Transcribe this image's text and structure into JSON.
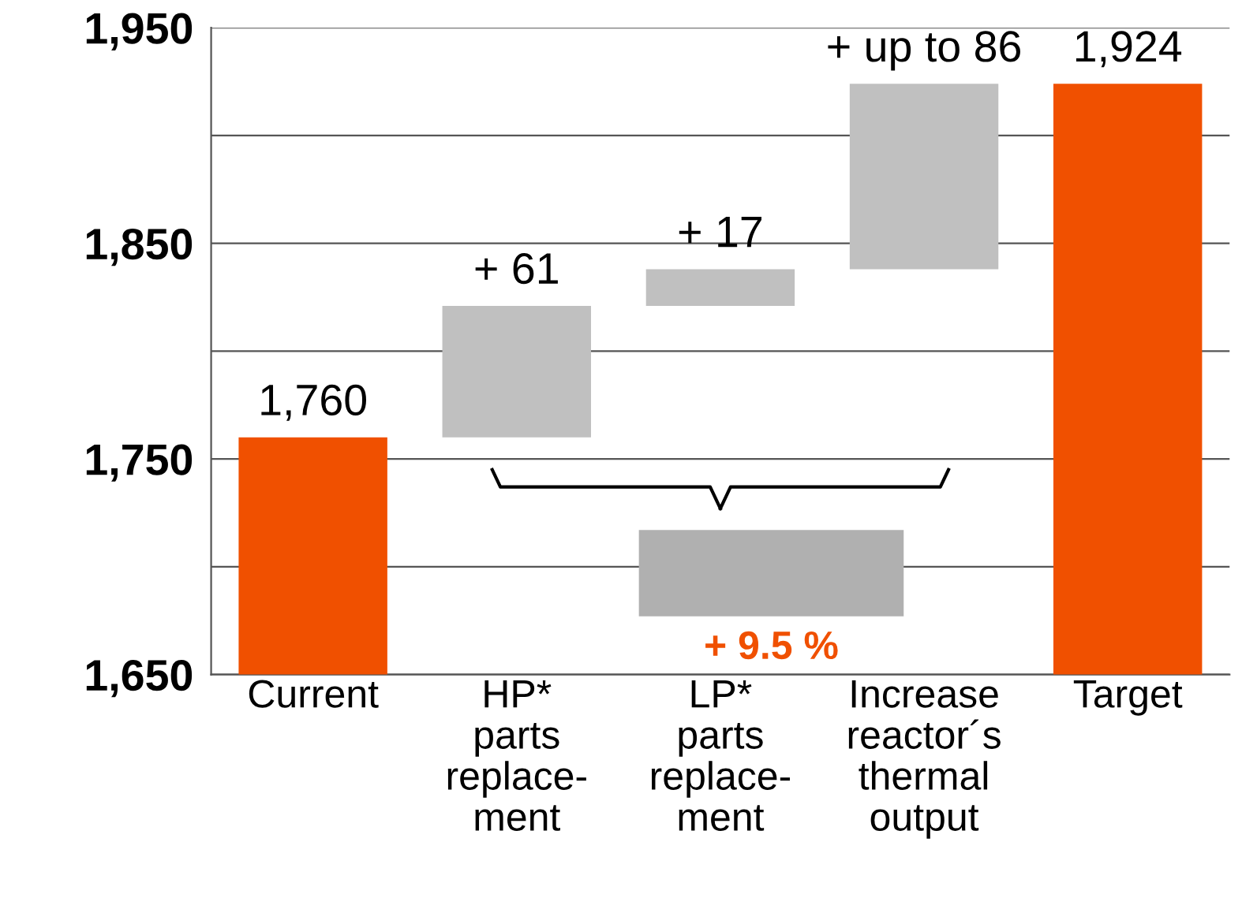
{
  "chart_data": {
    "type": "bar",
    "categories": [
      "Current",
      "HP*\nparts\nreplace-\nment",
      "LP*\nparts\nreplace-\nment",
      "Increase\nreactor´s\nthermal\noutput",
      "Target"
    ],
    "values": [
      1760,
      61,
      17,
      86,
      1924
    ],
    "base": [
      null,
      1760,
      1821,
      1838,
      null
    ],
    "colors": [
      "#f05000",
      "#c0c0c0",
      "#c0c0c0",
      "#c0c0c0",
      "#f05000"
    ],
    "value_labels": [
      "1,760",
      "+ 61",
      "+ 17",
      "+ up to 86",
      "1,924"
    ],
    "annotations": [
      "+ 9.5 %"
    ],
    "ylim": [
      1650,
      1950
    ],
    "yticks": [
      {
        "value": 1650,
        "label": "1,650"
      },
      {
        "value": 1700,
        "label": null
      },
      {
        "value": 1750,
        "label": "1,750"
      },
      {
        "value": 1800,
        "label": null
      },
      {
        "value": 1850,
        "label": "1,850"
      },
      {
        "value": 1900,
        "label": null
      },
      {
        "value": 1950,
        "label": "1,950"
      }
    ],
    "grid": "y",
    "legend": false
  }
}
